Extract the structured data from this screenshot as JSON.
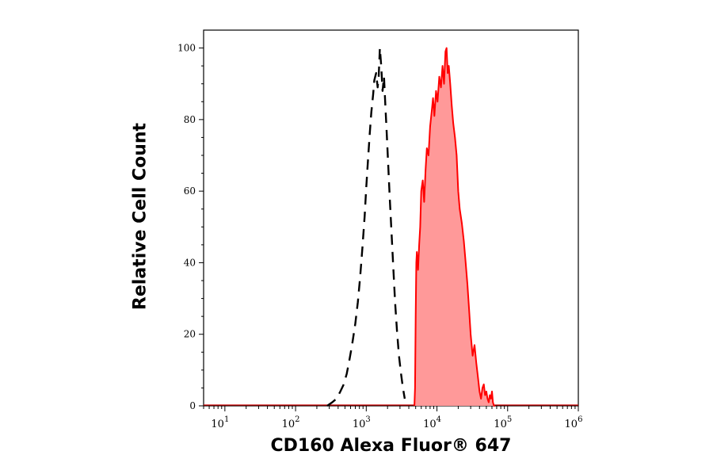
{
  "chart_data": {
    "type": "area",
    "xlabel": "CD160 Alexa Fluor® 647",
    "ylabel": "Relative Cell Count",
    "x_scale": "log",
    "xlim": [
      5,
      1000000
    ],
    "ylim": [
      0,
      105
    ],
    "grid": false,
    "x_ticks": [
      {
        "value": 10,
        "base": "10",
        "exp": "1"
      },
      {
        "value": 100,
        "base": "10",
        "exp": "2"
      },
      {
        "value": 1000,
        "base": "10",
        "exp": "3"
      },
      {
        "value": 10000,
        "base": "10",
        "exp": "4"
      },
      {
        "value": 100000,
        "base": "10",
        "exp": "5"
      },
      {
        "value": 1000000,
        "base": "10",
        "exp": "6"
      }
    ],
    "y_ticks": [
      {
        "value": 0,
        "label": "0"
      },
      {
        "value": 20,
        "label": "20"
      },
      {
        "value": 40,
        "label": "40"
      },
      {
        "value": 60,
        "label": "60"
      },
      {
        "value": 80,
        "label": "80"
      },
      {
        "value": 100,
        "label": "100"
      }
    ],
    "series": [
      {
        "style": "dashed",
        "color": "#000000",
        "fill": "none",
        "x": [
          280,
          330,
          380,
          430,
          480,
          530,
          580,
          630,
          700,
          760,
          820,
          880,
          950,
          1000,
          1060,
          1120,
          1180,
          1250,
          1300,
          1380,
          1450,
          1500,
          1560,
          1630,
          1700,
          1780,
          1850,
          1950,
          2050,
          2150,
          2280,
          2420,
          2560,
          2720,
          2900,
          3100,
          3300,
          3500
        ],
        "y": [
          0,
          1,
          2,
          4,
          6,
          9,
          13,
          17,
          23,
          29,
          36,
          44,
          53,
          61,
          69,
          76,
          82,
          87,
          91,
          93,
          89,
          92,
          100,
          95,
          88,
          92,
          85,
          76,
          67,
          58,
          48,
          38,
          29,
          21,
          14,
          9,
          5,
          2
        ]
      },
      {
        "style": "solid",
        "color": "#ff0000",
        "fill": "#ff9999",
        "x": [
          4800,
          4900,
          5000,
          5100,
          5200,
          5400,
          5600,
          5800,
          6000,
          6300,
          6600,
          6900,
          7200,
          7600,
          8000,
          8400,
          8800,
          9200,
          9700,
          10200,
          10800,
          11400,
          12000,
          12600,
          13200,
          13700,
          14200,
          14700,
          15400,
          16200,
          17000,
          18000,
          19000,
          20000,
          21000,
          22500,
          24000,
          25500,
          27000,
          28500,
          30000,
          32000,
          34000,
          36000,
          38000,
          40000,
          42000,
          44000,
          46000,
          48000,
          50000,
          52000,
          54000,
          56000,
          58000,
          60000,
          62000,
          64000,
          66000
        ],
        "y": [
          0,
          5,
          25,
          40,
          43,
          38,
          45,
          50,
          60,
          63,
          57,
          66,
          72,
          70,
          78,
          82,
          86,
          81,
          88,
          85,
          92,
          89,
          95,
          90,
          99,
          100,
          93,
          95,
          90,
          84,
          79,
          75,
          70,
          60,
          55,
          51,
          46,
          40,
          34,
          27,
          20,
          14,
          17,
          12,
          8,
          4,
          2,
          5,
          6,
          3,
          4,
          2,
          1,
          3,
          2,
          4,
          1,
          0,
          0
        ]
      }
    ]
  }
}
